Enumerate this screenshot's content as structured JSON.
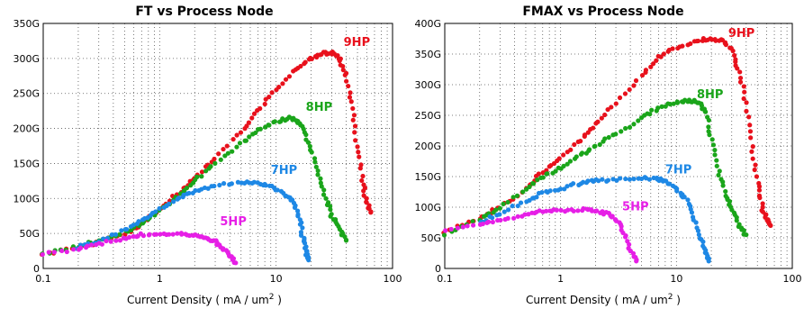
{
  "chart_data": [
    {
      "type": "scatter",
      "title": "FT vs Process Node",
      "xlabel": "Current Density ( mA / um",
      "xlabel_sup": "2",
      "xlabel_end": " )",
      "ylabel": "",
      "xscale": "log",
      "xlim": [
        0.1,
        100
      ],
      "ylim": [
        0,
        350
      ],
      "x_ticks": [
        {
          "v": 0.1,
          "label": "0.1"
        },
        {
          "v": 1,
          "label": "1"
        },
        {
          "v": 10,
          "label": "10"
        },
        {
          "v": 100,
          "label": "100"
        }
      ],
      "y_ticks": [
        {
          "v": 0,
          "label": "0"
        },
        {
          "v": 50,
          "label": "50G"
        },
        {
          "v": 100,
          "label": "100G"
        },
        {
          "v": 150,
          "label": "150G"
        },
        {
          "v": 200,
          "label": "200G"
        },
        {
          "v": 250,
          "label": "250G"
        },
        {
          "v": 300,
          "label": "300G"
        },
        {
          "v": 350,
          "label": "350G"
        }
      ],
      "grid": true,
      "series": [
        {
          "name": "9HP",
          "color": "#e8111c",
          "label_at": [
            38,
            318
          ],
          "points": [
            [
              0.1,
              20
            ],
            [
              0.2,
              30
            ],
            [
              0.3,
              38
            ],
            [
              0.5,
              50
            ],
            [
              0.7,
              63
            ],
            [
              1,
              85
            ],
            [
              1.5,
              110
            ],
            [
              2,
              130
            ],
            [
              3,
              158
            ],
            [
              5,
              195
            ],
            [
              7,
              225
            ],
            [
              10,
              255
            ],
            [
              15,
              285
            ],
            [
              20,
              300
            ],
            [
              25,
              307
            ],
            [
              30,
              308
            ],
            [
              35,
              300
            ],
            [
              40,
              275
            ],
            [
              45,
              230
            ],
            [
              50,
              175
            ],
            [
              55,
              125
            ],
            [
              60,
              95
            ],
            [
              65,
              80
            ]
          ]
        },
        {
          "name": "8HP",
          "color": "#1aa51a",
          "label_at": [
            18,
            225
          ],
          "points": [
            [
              0.1,
              20
            ],
            [
              0.2,
              32
            ],
            [
              0.3,
              40
            ],
            [
              0.5,
              52
            ],
            [
              0.7,
              65
            ],
            [
              1,
              82
            ],
            [
              1.5,
              105
            ],
            [
              2,
              125
            ],
            [
              3,
              150
            ],
            [
              5,
              178
            ],
            [
              7,
              197
            ],
            [
              10,
              210
            ],
            [
              13,
              215
            ],
            [
              15,
              212
            ],
            [
              17,
              200
            ],
            [
              20,
              170
            ],
            [
              23,
              135
            ],
            [
              27,
              100
            ],
            [
              30,
              75
            ],
            [
              35,
              55
            ],
            [
              40,
              40
            ]
          ]
        },
        {
          "name": "7HP",
          "color": "#1e88e5",
          "label_at": [
            9,
            135
          ],
          "points": [
            [
              0.2,
              30
            ],
            [
              0.3,
              40
            ],
            [
              0.5,
              55
            ],
            [
              0.7,
              68
            ],
            [
              1,
              85
            ],
            [
              1.5,
              100
            ],
            [
              2,
              110
            ],
            [
              3,
              118
            ],
            [
              5,
              123
            ],
            [
              7,
              122
            ],
            [
              9,
              118
            ],
            [
              12,
              105
            ],
            [
              14,
              95
            ],
            [
              16,
              70
            ],
            [
              17,
              45
            ],
            [
              18,
              25
            ],
            [
              19,
              12
            ]
          ]
        },
        {
          "name": "5HP",
          "color": "#e61fe6",
          "label_at": [
            3.3,
            62
          ],
          "points": [
            [
              0.1,
              20
            ],
            [
              0.2,
              28
            ],
            [
              0.3,
              35
            ],
            [
              0.5,
              42
            ],
            [
              0.7,
              48
            ],
            [
              1,
              50
            ],
            [
              1.5,
              50
            ],
            [
              2,
              48
            ],
            [
              2.5,
              45
            ],
            [
              3,
              38
            ],
            [
              3.5,
              28
            ],
            [
              4,
              18
            ],
            [
              4.5,
              8
            ]
          ]
        }
      ]
    },
    {
      "type": "scatter",
      "title": "FMAX vs Process Node",
      "xlabel": "Current Density ( mA / um",
      "xlabel_sup": "2",
      "xlabel_end": " )",
      "ylabel": "",
      "xscale": "log",
      "xlim": [
        0.1,
        100
      ],
      "ylim": [
        0,
        400
      ],
      "x_ticks": [
        {
          "v": 0.1,
          "label": "0.1"
        },
        {
          "v": 1,
          "label": "1"
        },
        {
          "v": 10,
          "label": "10"
        },
        {
          "v": 100,
          "label": "100"
        }
      ],
      "y_ticks": [
        {
          "v": 0,
          "label": "0"
        },
        {
          "v": 50,
          "label": "50G"
        },
        {
          "v": 100,
          "label": "100G"
        },
        {
          "v": 150,
          "label": "150G"
        },
        {
          "v": 200,
          "label": "200G"
        },
        {
          "v": 250,
          "label": "250G"
        },
        {
          "v": 300,
          "label": "300G"
        },
        {
          "v": 350,
          "label": "350G"
        },
        {
          "v": 400,
          "label": "400G"
        }
      ],
      "grid": true,
      "series": [
        {
          "name": "9HP",
          "color": "#e8111c",
          "label_at": [
            28,
            378
          ],
          "points": [
            [
              0.1,
              60
            ],
            [
              0.2,
              82
            ],
            [
              0.3,
              100
            ],
            [
              0.5,
              130
            ],
            [
              0.7,
              158
            ],
            [
              1,
              180
            ],
            [
              1.5,
              210
            ],
            [
              2,
              235
            ],
            [
              3,
              270
            ],
            [
              5,
              315
            ],
            [
              7,
              345
            ],
            [
              10,
              360
            ],
            [
              15,
              372
            ],
            [
              20,
              375
            ],
            [
              25,
              372
            ],
            [
              30,
              355
            ],
            [
              35,
              320
            ],
            [
              40,
              270
            ],
            [
              45,
              200
            ],
            [
              50,
              140
            ],
            [
              55,
              100
            ],
            [
              60,
              80
            ],
            [
              65,
              70
            ]
          ]
        },
        {
          "name": "8HP",
          "color": "#1aa51a",
          "label_at": [
            15,
            278
          ],
          "points": [
            [
              0.1,
              55
            ],
            [
              0.2,
              80
            ],
            [
              0.3,
              100
            ],
            [
              0.5,
              130
            ],
            [
              0.7,
              150
            ],
            [
              1,
              165
            ],
            [
              1.5,
              185
            ],
            [
              2,
              200
            ],
            [
              3,
              220
            ],
            [
              5,
              245
            ],
            [
              7,
              262
            ],
            [
              10,
              272
            ],
            [
              13,
              275
            ],
            [
              16,
              270
            ],
            [
              18,
              255
            ],
            [
              20,
              210
            ],
            [
              23,
              160
            ],
            [
              27,
              120
            ],
            [
              30,
              95
            ],
            [
              35,
              70
            ],
            [
              40,
              55
            ]
          ]
        },
        {
          "name": "7HP",
          "color": "#1e88e5",
          "label_at": [
            8,
            155
          ],
          "points": [
            [
              0.2,
              75
            ],
            [
              0.3,
              90
            ],
            [
              0.5,
              110
            ],
            [
              0.7,
              123
            ],
            [
              1,
              130
            ],
            [
              1.5,
              140
            ],
            [
              2,
              143
            ],
            [
              3,
              145
            ],
            [
              5,
              147
            ],
            [
              7,
              146
            ],
            [
              8,
              142
            ],
            [
              10,
              130
            ],
            [
              12,
              115
            ],
            [
              14,
              85
            ],
            [
              16,
              50
            ],
            [
              18,
              25
            ],
            [
              19,
              12
            ]
          ]
        },
        {
          "name": "5HP",
          "color": "#e61fe6",
          "label_at": [
            3.4,
            95
          ],
          "points": [
            [
              0.1,
              60
            ],
            [
              0.2,
              72
            ],
            [
              0.3,
              80
            ],
            [
              0.5,
              88
            ],
            [
              0.7,
              93
            ],
            [
              1,
              95
            ],
            [
              1.5,
              96
            ],
            [
              2,
              94
            ],
            [
              2.5,
              90
            ],
            [
              3,
              80
            ],
            [
              3.5,
              60
            ],
            [
              4,
              30
            ],
            [
              4.5,
              12
            ]
          ]
        }
      ]
    }
  ]
}
